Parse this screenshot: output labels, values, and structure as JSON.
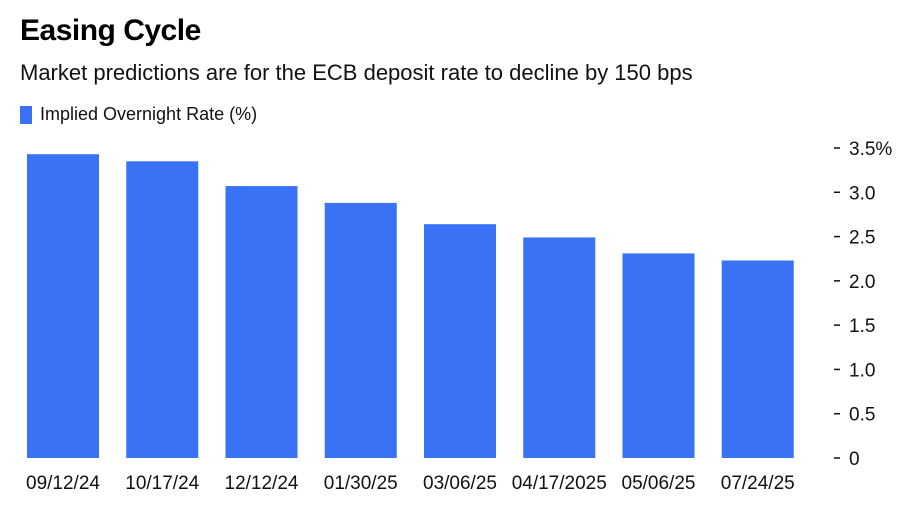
{
  "chart_data": {
    "type": "bar",
    "title": "Easing Cycle",
    "subtitle": "Market predictions are for the ECB deposit rate to decline by 150 bps",
    "legend": [
      {
        "label": "Implied Overnight Rate (%)",
        "color": "#3a72f6"
      }
    ],
    "categories": [
      "09/12/24",
      "10/17/24",
      "12/12/24",
      "01/30/25",
      "03/06/25",
      "04/17/2025",
      "05/06/25",
      "07/24/25"
    ],
    "series": [
      {
        "name": "Implied Overnight Rate (%)",
        "values": [
          3.43,
          3.35,
          3.07,
          2.88,
          2.64,
          2.49,
          2.31,
          2.23
        ]
      }
    ],
    "ylim": [
      0,
      3.5
    ],
    "yticks": [
      {
        "value": 3.5,
        "label": "3.5%"
      },
      {
        "value": 3.0,
        "label": "3.0"
      },
      {
        "value": 2.5,
        "label": "2.5"
      },
      {
        "value": 2.0,
        "label": "2.0"
      },
      {
        "value": 1.5,
        "label": "1.5"
      },
      {
        "value": 1.0,
        "label": "1.0"
      },
      {
        "value": 0.5,
        "label": "0.5"
      },
      {
        "value": 0,
        "label": "0"
      }
    ],
    "yaxis_position": "right",
    "grid": false,
    "legend_position": "top-left"
  }
}
